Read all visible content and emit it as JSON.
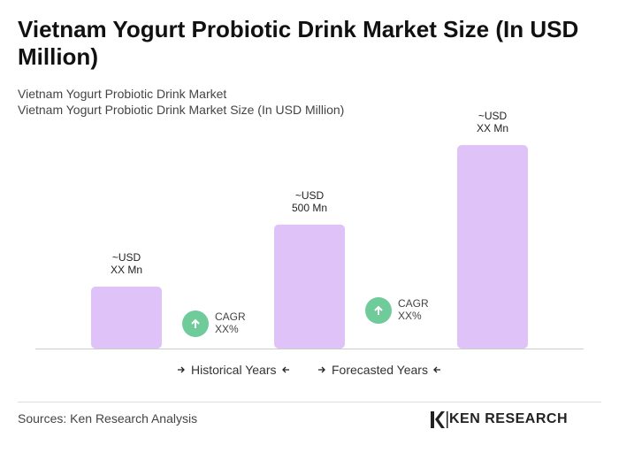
{
  "chart_data": {
    "type": "bar",
    "title": "Vietnam Yogurt Probiotic Drink Market Size (In USD Million)",
    "subtitles": [
      "Vietnam Yogurt Probiotic Drink Market",
      "Vietnam Yogurt Probiotic Drink Market Size (In USD Million)"
    ],
    "categories": [
      null,
      null,
      null
    ],
    "values": [
      250,
      500,
      821
    ],
    "value_labels": [
      "~USD\nXX Mn",
      "~USD\n500 Mn",
      "~USD\nXX Mn"
    ],
    "color": "#dfc3f8",
    "annotations": [
      "CAGR\nXX%",
      "CAGR\nXX%"
    ],
    "periods": [
      "Historical Years",
      "Forecasted Years"
    ],
    "source": "Sources: Ken Research Analysis",
    "logo": "KEN RESEARCH"
  }
}
